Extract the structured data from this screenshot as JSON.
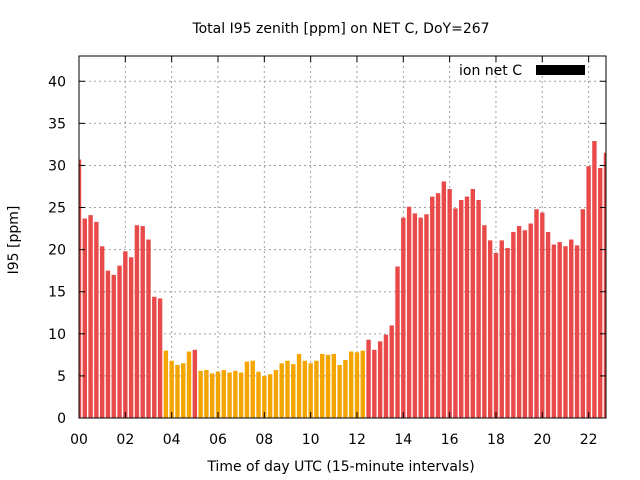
{
  "chart_data": {
    "type": "bar",
    "title": "Total I95 zenith [ppm] on NET C, DoY=267",
    "xlabel": "Time of day UTC (15-minute intervals)",
    "ylabel": "I95 [ppm]",
    "legend": {
      "label": "ion net C",
      "color": "#000000",
      "placement": "top-right"
    },
    "grid": true,
    "xlim": [
      0,
      22.75
    ],
    "ylim": [
      0,
      43
    ],
    "xticks": [
      0,
      2,
      4,
      6,
      8,
      10,
      12,
      14,
      16,
      18,
      20,
      22
    ],
    "xtick_labels": [
      "00",
      "02",
      "04",
      "06",
      "08",
      "10",
      "12",
      "14",
      "16",
      "18",
      "20",
      "22"
    ],
    "yticks": [
      0,
      5,
      10,
      15,
      20,
      25,
      30,
      35,
      40
    ],
    "ytick_labels": [
      "0",
      "5",
      "10",
      "15",
      "20",
      "25",
      "30",
      "35",
      "40"
    ],
    "bar_width_hours": 0.19,
    "colors": {
      "high": "#e84a4a",
      "low": "#f5a500",
      "threshold": 8
    },
    "x": [
      0.0,
      0.25,
      0.5,
      0.75,
      1.0,
      1.25,
      1.5,
      1.75,
      2.0,
      2.25,
      2.5,
      2.75,
      3.0,
      3.25,
      3.5,
      3.75,
      4.0,
      4.25,
      4.5,
      4.75,
      5.0,
      5.25,
      5.5,
      5.75,
      6.0,
      6.25,
      6.5,
      6.75,
      7.0,
      7.25,
      7.5,
      7.75,
      8.0,
      8.25,
      8.5,
      8.75,
      9.0,
      9.25,
      9.5,
      9.75,
      10.0,
      10.25,
      10.5,
      10.75,
      11.0,
      11.25,
      11.5,
      11.75,
      12.0,
      12.25,
      12.5,
      12.75,
      13.0,
      13.25,
      13.5,
      13.75,
      14.0,
      14.25,
      14.5,
      14.75,
      15.0,
      15.25,
      15.5,
      15.75,
      16.0,
      16.25,
      16.5,
      16.75,
      17.0,
      17.25,
      17.5,
      17.75,
      18.0,
      18.25,
      18.5,
      18.75,
      19.0,
      19.25,
      19.5,
      19.75,
      20.0,
      20.25,
      20.5,
      20.75,
      21.0,
      21.25,
      21.5,
      21.75,
      22.0,
      22.25,
      22.5,
      22.75
    ],
    "values": [
      30.7,
      23.7,
      24.1,
      23.3,
      20.4,
      17.5,
      17.0,
      18.1,
      19.8,
      19.1,
      22.9,
      22.8,
      21.2,
      14.4,
      14.2,
      8.0,
      6.8,
      6.3,
      6.5,
      7.9,
      8.1,
      5.6,
      5.7,
      5.3,
      5.5,
      5.7,
      5.4,
      5.6,
      5.4,
      6.7,
      6.8,
      5.5,
      5.0,
      5.2,
      5.7,
      6.5,
      6.8,
      6.4,
      7.6,
      6.8,
      6.5,
      6.8,
      7.6,
      7.5,
      7.6,
      6.3,
      6.9,
      7.9,
      7.8,
      8.0,
      9.3,
      8.1,
      9.1,
      9.9,
      11.0,
      18.0,
      23.8,
      25.1,
      24.3,
      23.8,
      24.2,
      26.3,
      26.7,
      28.1,
      27.2,
      24.9,
      25.9,
      26.3,
      27.2,
      25.9,
      22.9,
      21.1,
      19.6,
      21.1,
      20.2,
      22.1,
      22.8,
      22.3,
      23.1,
      24.8,
      24.4,
      22.1,
      20.6,
      20.9,
      20.4,
      21.2,
      20.5,
      24.8,
      29.9,
      32.9,
      29.7,
      31.5
    ]
  }
}
